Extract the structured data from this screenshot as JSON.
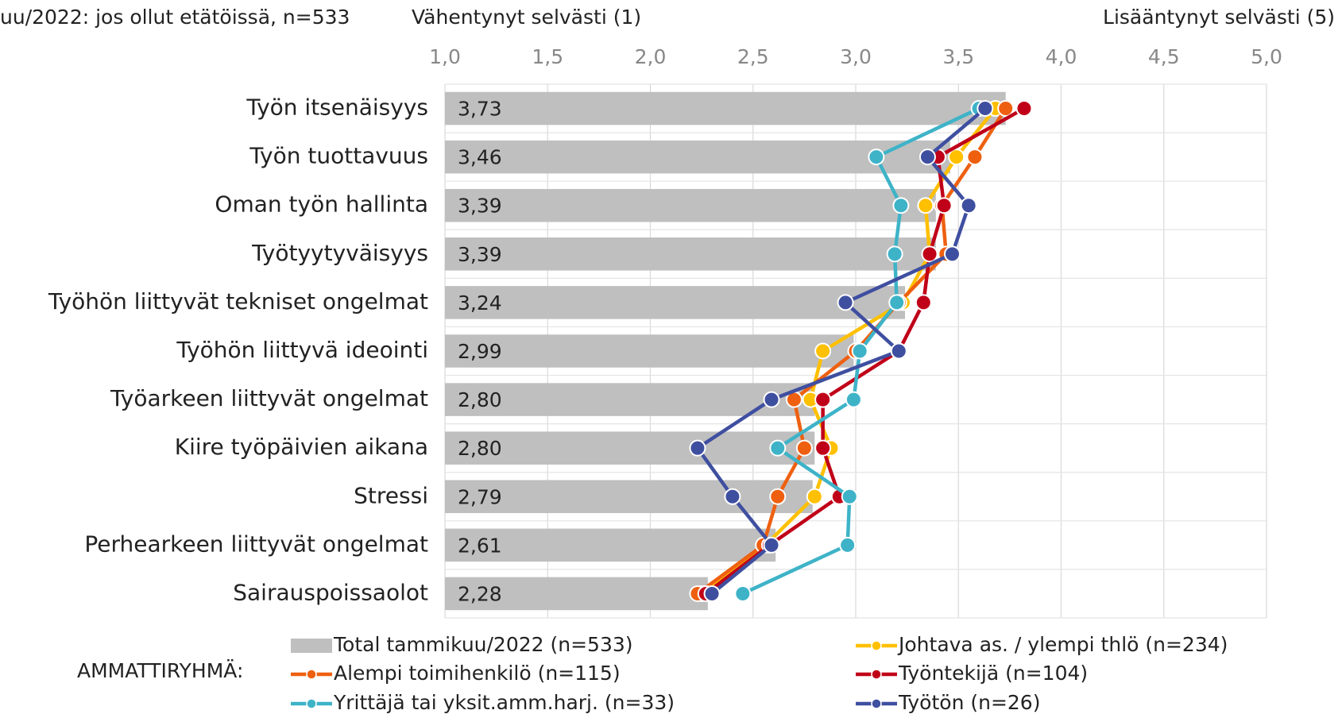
{
  "chart_data": {
    "type": "bar_line",
    "title": "uu/2022: jos ollut etätöissä, n=533",
    "x_label_left": "Vähentynyt selvästi (1)",
    "x_label_right": "Lisääntynyt selvästi (5)",
    "legend_title": "AMMATTIRYHMÄ:",
    "categories": [
      "Työn itsenäisyys",
      "Työn tuottavuus",
      "Oman työn hallinta",
      "Työtyytyväisyys",
      "Työhön liittyvät tekniset ongelmat",
      "Työhön liittyvä ideointi",
      "Työarkeen liittyvät ongelmat",
      "Kiire työpäivien aikana",
      "Stressi",
      "Perhearkeen liittyvät ongelmat",
      "Sairauspoissaolot"
    ],
    "xlim": [
      1,
      5
    ],
    "xticks": [
      {
        "value": 1,
        "label": "1,0"
      },
      {
        "value": 1.5,
        "label": "1,5"
      },
      {
        "value": 2,
        "label": "2,0"
      },
      {
        "value": 2.5,
        "label": "2,5"
      },
      {
        "value": 3,
        "label": "3,0"
      },
      {
        "value": 3.5,
        "label": "3,5"
      },
      {
        "value": 4,
        "label": "4,0"
      },
      {
        "value": 4.5,
        "label": "4,5"
      },
      {
        "value": 5,
        "label": "5,0"
      }
    ],
    "grid": true,
    "series": [
      {
        "name": "Total tammikuu/2022 (n=533)",
        "type": "bar",
        "color": "#bfbfbf",
        "values": [
          3.73,
          3.46,
          3.39,
          3.39,
          3.24,
          2.99,
          2.8,
          2.8,
          2.79,
          2.61,
          2.28
        ],
        "value_labels": [
          "3,73",
          "3,46",
          "3,39",
          "3,39",
          "3,24",
          "2,99",
          "2,80",
          "2,80",
          "2,79",
          "2,61",
          "2,28"
        ]
      },
      {
        "name": "Johtava as. / ylempi thlö (n=234)",
        "type": "line",
        "color": "#ffc000",
        "values": [
          3.68,
          3.49,
          3.34,
          3.36,
          3.23,
          2.84,
          2.78,
          2.88,
          2.8,
          2.56,
          2.25
        ]
      },
      {
        "name": "Alempi toimihenkilö (n=115)",
        "type": "line",
        "color": "#ee6010",
        "values": [
          3.73,
          3.58,
          3.42,
          3.44,
          3.21,
          3.0,
          2.7,
          2.75,
          2.62,
          2.55,
          2.23
        ]
      },
      {
        "name": "Työntekijä (n=104)",
        "type": "line",
        "color": "#c00018",
        "values": [
          3.82,
          3.4,
          3.43,
          3.36,
          3.33,
          3.21,
          2.84,
          2.84,
          2.92,
          2.58,
          2.27
        ]
      },
      {
        "name": "Yrittäjä tai yksit.amm.harj. (n=33)",
        "type": "line",
        "color": "#3eb3c8",
        "values": [
          3.6,
          3.1,
          3.22,
          3.19,
          3.2,
          3.02,
          2.99,
          2.62,
          2.97,
          2.96,
          2.45
        ]
      },
      {
        "name": "Työtön (n=26)",
        "type": "line",
        "color": "#3f4fa0",
        "values": [
          3.63,
          3.35,
          3.55,
          3.47,
          2.95,
          3.21,
          2.59,
          2.23,
          2.4,
          2.59,
          2.3
        ]
      }
    ]
  }
}
